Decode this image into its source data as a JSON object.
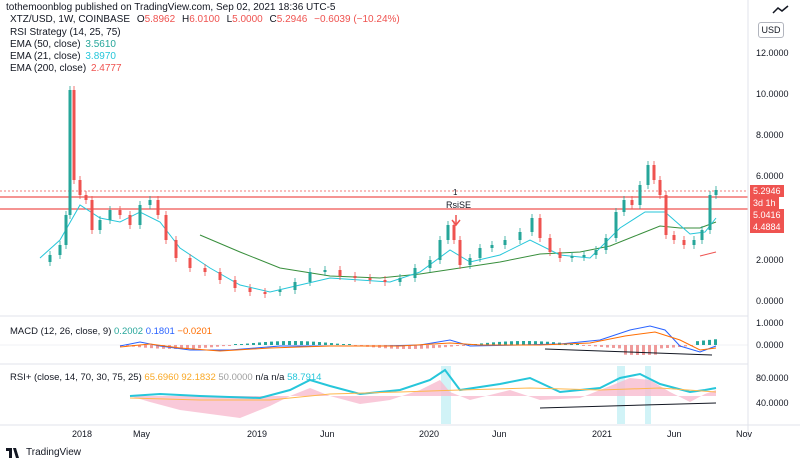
{
  "header": {
    "publisher": "tothemoonblog published on TradingView.com, Sep 02, 2021 18:36 UTC-5"
  },
  "symbol": {
    "title": "XTZ/USD, 1W, COINBASE",
    "open_label": "O",
    "open": "5.8962",
    "high_label": "H",
    "high": "6.0100",
    "low_label": "L",
    "low": "5.0000",
    "close_label": "C",
    "close": "5.2946",
    "change": "−0.6039 (−10.24%)"
  },
  "indicators": {
    "rsi_strategy": "RSI Strategy (14, 25, 75)",
    "ema50": {
      "label": "EMA (50, close)",
      "value": "3.5610",
      "color": "#26a69a"
    },
    "ema21": {
      "label": "EMA (21, close)",
      "value": "3.8970",
      "color": "#26c6da"
    },
    "ema200": {
      "label": "EMA (200, close)",
      "value": "2.4777",
      "color": "#ef5350"
    }
  },
  "currency_button": "USD",
  "price_axis": [
    "12.0000",
    "10.0000",
    "8.0000",
    "6.0000",
    "2.0000",
    "0.0000"
  ],
  "price_tags": {
    "last": "5.2946",
    "countdown": "3d 1h",
    "level1": "5.0416",
    "level2": "4.4884",
    "last_color": "#ef5350"
  },
  "chart_marks": {
    "strategy_label": "RsiSE",
    "strategy_count": "1"
  },
  "macd": {
    "label": "MACD (12, 26, close, 9)",
    "v1": "0.2002",
    "v2": "0.1801",
    "v3": "−0.0201",
    "axis": [
      "1.0000",
      "0.0000"
    ]
  },
  "rsi_plus": {
    "label": "RSI+ (close, 14, 70, 30, 75, 25)",
    "v1": "65.6960",
    "v2": "92.1832",
    "v3": "50.0000",
    "v4": "n/a",
    "v5": "n/a",
    "v6": "58.7914",
    "axis": [
      "80.0000",
      "40.0000"
    ]
  },
  "time_axis": [
    "2018",
    "May",
    "2019",
    "Jun",
    "2020",
    "Jun",
    "2021",
    "Jun",
    "Nov"
  ],
  "brand": "TradingView"
}
